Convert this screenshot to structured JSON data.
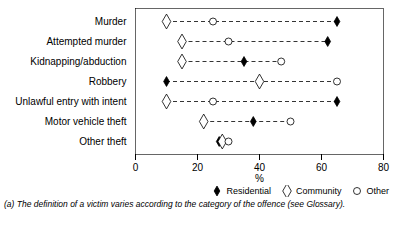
{
  "chart_data": {
    "type": "dot",
    "categories": [
      "Murder",
      "Attempted murder",
      "Kidnapping/abduction",
      "Robbery",
      "Unlawful entry with intent",
      "Motor vehicle theft",
      "Other theft"
    ],
    "series": [
      {
        "name": "Residential",
        "color": "black",
        "marker": "diamond",
        "values": [
          65,
          62,
          35,
          10,
          65,
          38,
          27
        ]
      },
      {
        "name": "Community",
        "color": "black",
        "marker": "diamond-open",
        "values": [
          10,
          15,
          15,
          40,
          10,
          22,
          28
        ]
      },
      {
        "name": "Other",
        "color": "black",
        "marker": "circle-open",
        "values": [
          25,
          30,
          47,
          65,
          25,
          50,
          30
        ]
      }
    ],
    "xlim": [
      0,
      80
    ],
    "xticks": [
      0,
      20,
      40,
      60,
      80
    ],
    "xlabel": "%",
    "line_style": "dashed",
    "legend": "lower right",
    "grid": false,
    "footnote": "(a) The definition of a victim varies according to the category of the offence (see Glossary)."
  }
}
